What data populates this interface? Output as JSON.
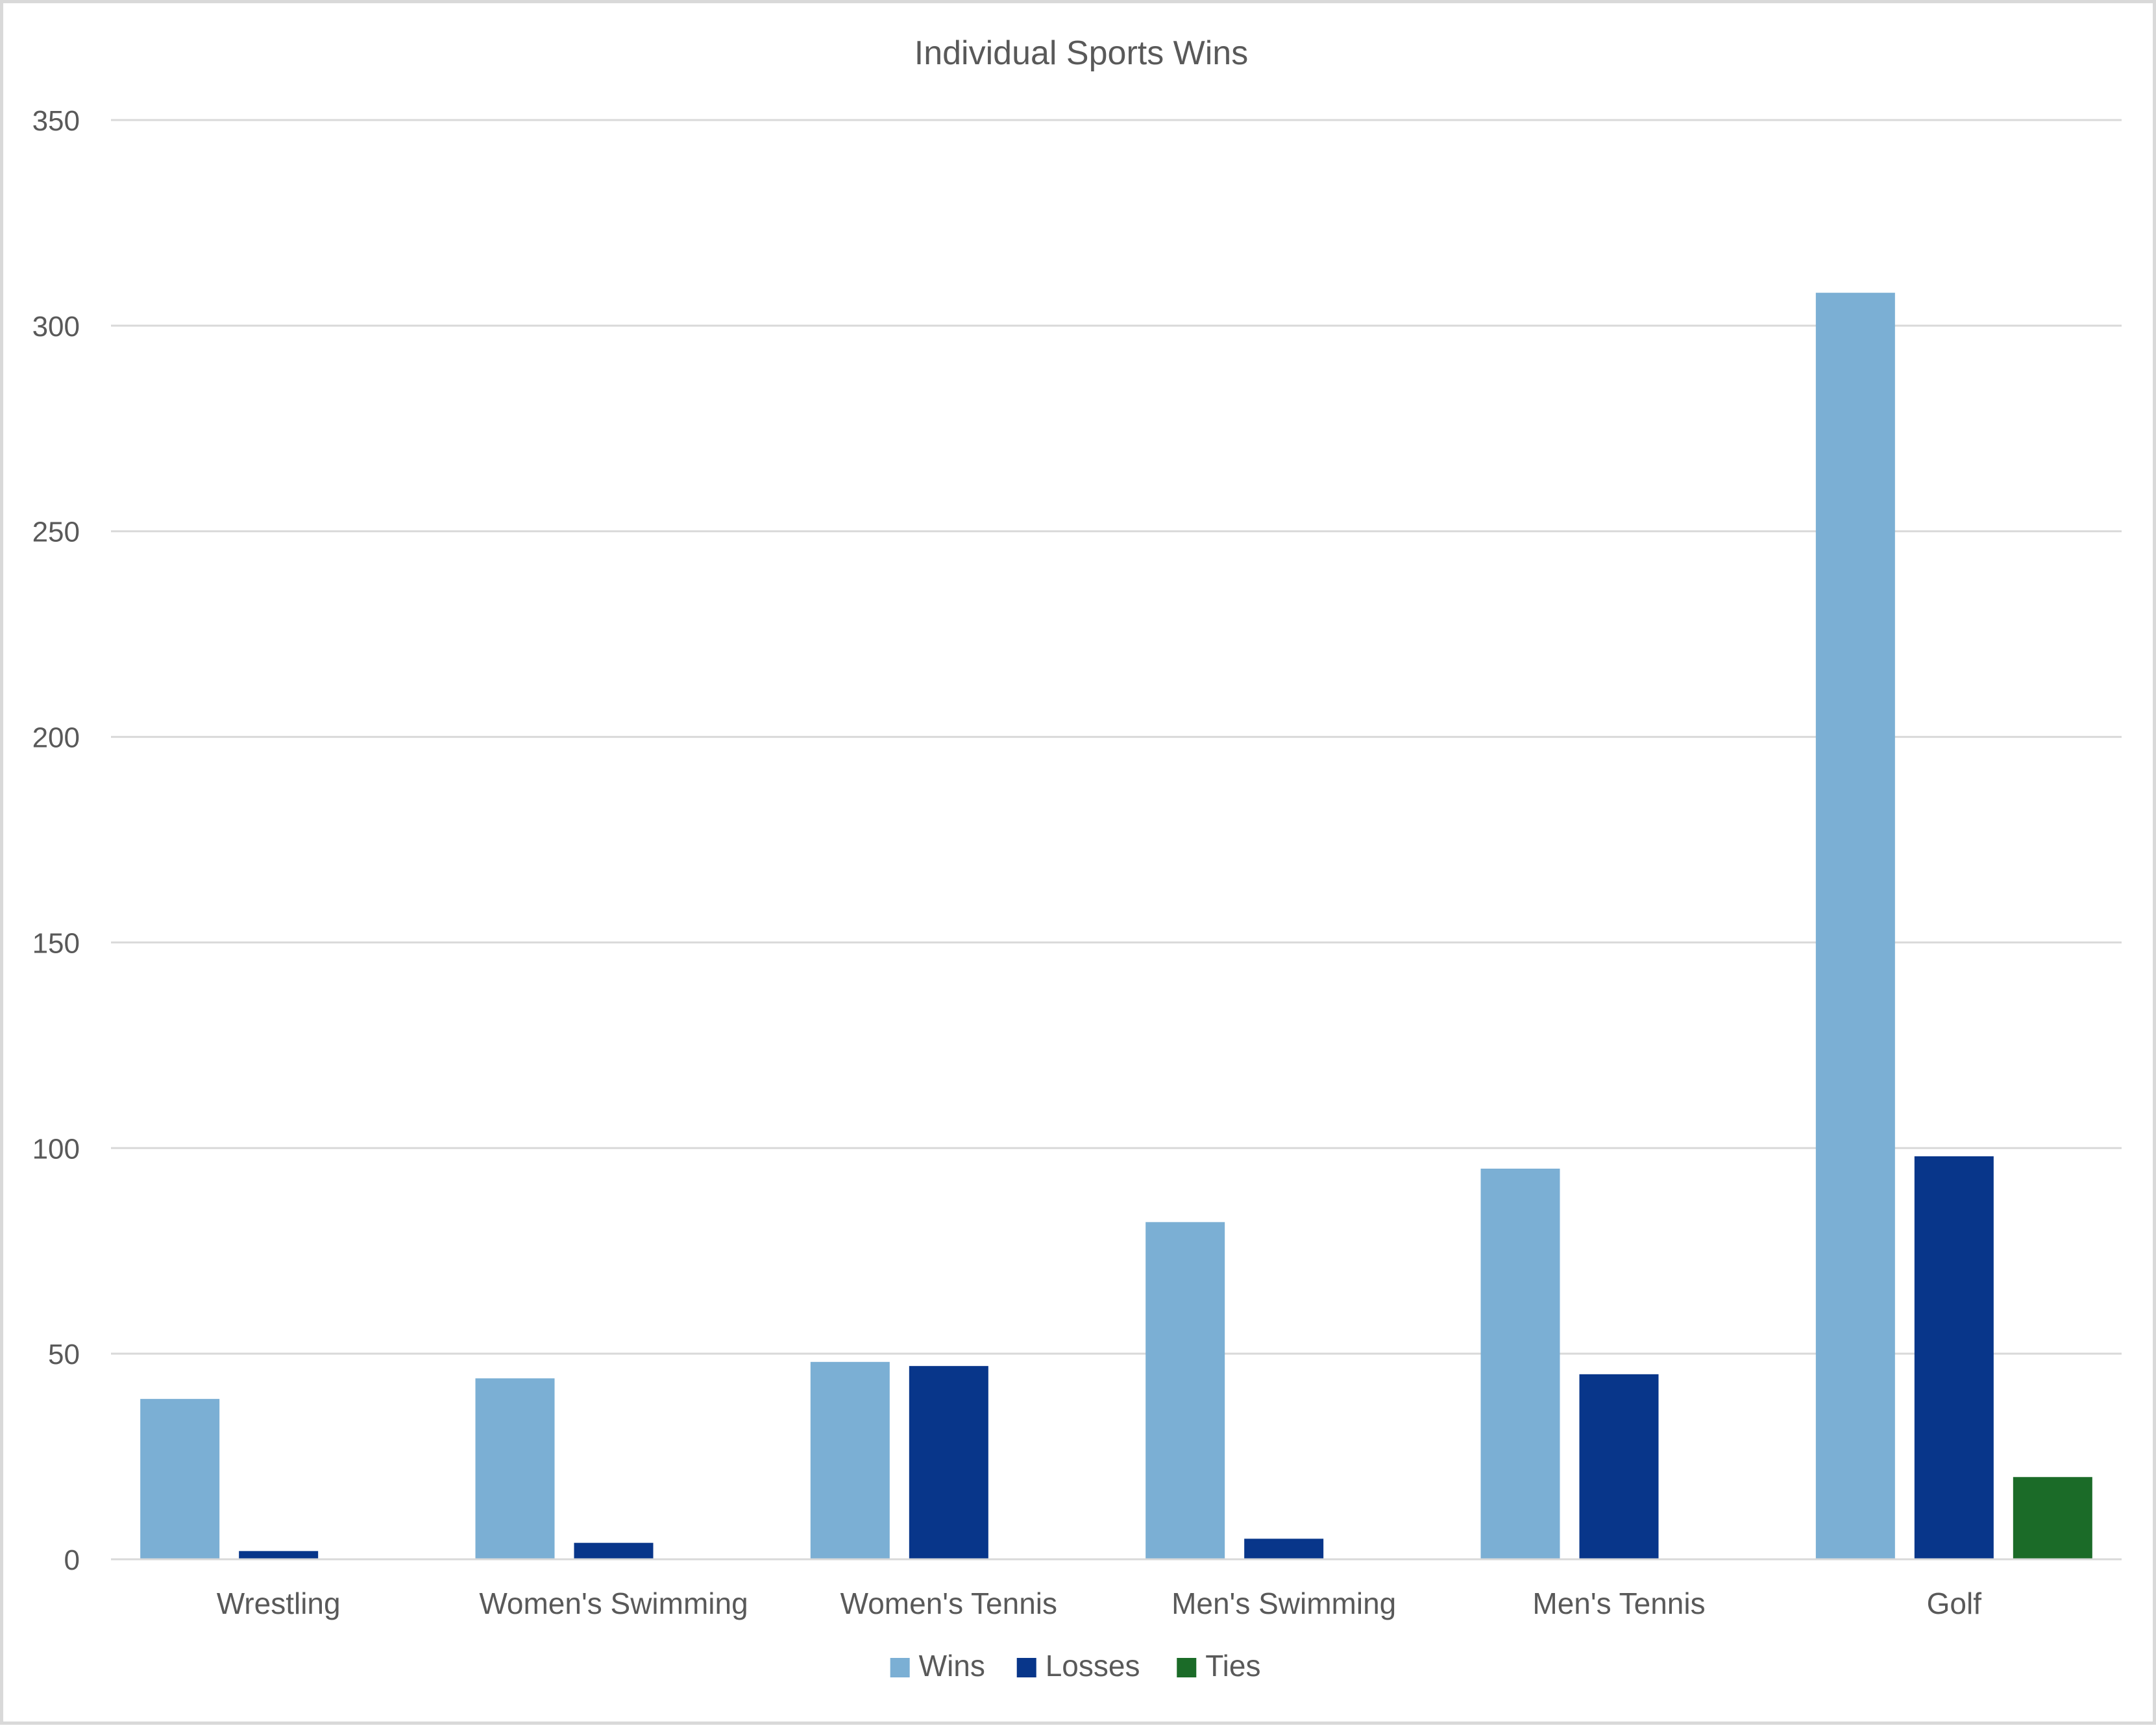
{
  "chart_data": {
    "type": "bar",
    "title": "Individual Sports Wins",
    "xlabel": "",
    "ylabel": "",
    "categories": [
      "Wrestling",
      "Women's Swimming",
      "Women's Tennis",
      "Men's Swimming",
      "Men's Tennis",
      "Golf"
    ],
    "series": [
      {
        "name": "Wins",
        "color": "#7bafd4",
        "values": [
          39,
          44,
          48,
          82,
          95,
          308
        ]
      },
      {
        "name": "Losses",
        "color": "#08368a",
        "values": [
          2,
          4,
          47,
          5,
          45,
          98
        ]
      },
      {
        "name": "Ties",
        "color": "#1b6b28",
        "values": [
          0,
          0,
          0,
          0,
          0,
          20
        ]
      }
    ],
    "ylim": [
      0,
      350
    ],
    "yticks": [
      0,
      50,
      100,
      150,
      200,
      250,
      300,
      350
    ],
    "grid": true,
    "legend": "bottom-center"
  }
}
